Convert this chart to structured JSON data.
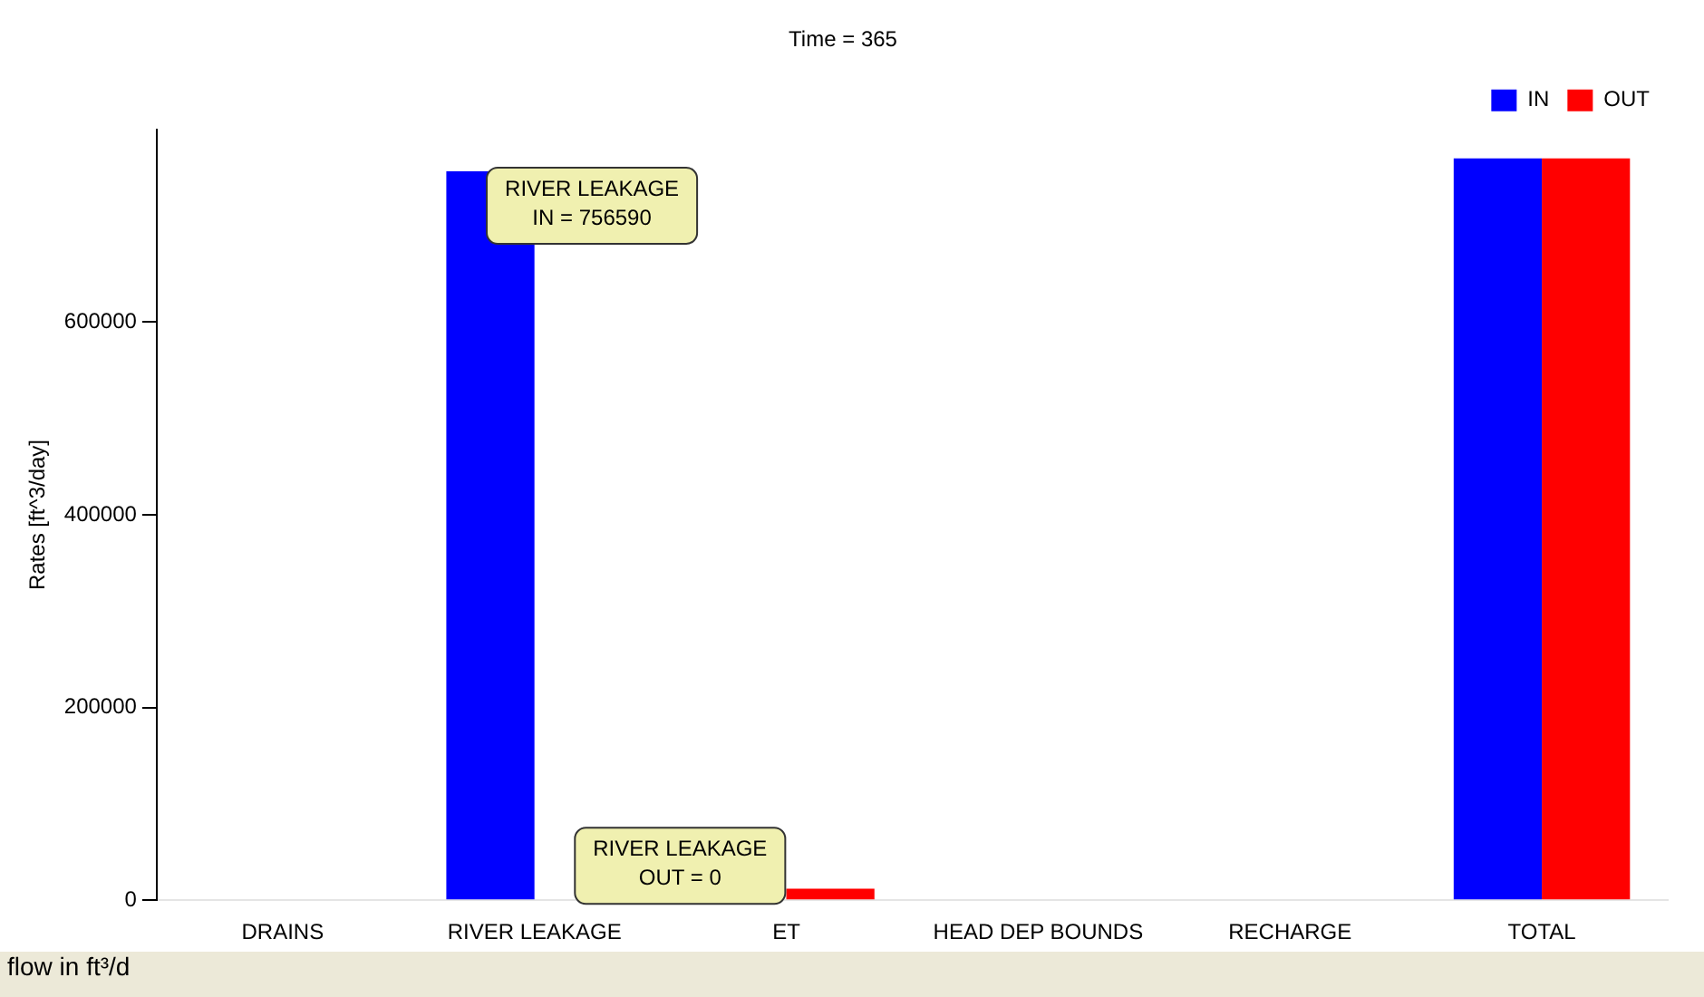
{
  "chart_data": {
    "type": "bar",
    "title": "Time = 365",
    "ylabel": "Rates [ft^3/day]",
    "categories": [
      "DRAINS",
      "RIVER LEAKAGE",
      "ET",
      "HEAD DEP BOUNDS",
      "RECHARGE",
      "TOTAL"
    ],
    "series": [
      {
        "name": "IN",
        "color": "#0000ff",
        "values": [
          0,
          756590,
          0,
          0,
          0,
          770000
        ]
      },
      {
        "name": "OUT",
        "color": "#ff0000",
        "values": [
          0,
          0,
          12000,
          0,
          0,
          770000
        ]
      }
    ],
    "ylim": [
      0,
      800000
    ],
    "yticks": [
      0,
      200000,
      400000,
      600000
    ],
    "grid": false,
    "legend": "top right",
    "annotations": [
      {
        "text": "RIVER LEAKAGE\nIN = 756590",
        "x": "RIVER LEAKAGE",
        "y": 756590
      },
      {
        "text": "RIVER LEAKAGE\nOUT = 0",
        "x": "RIVER LEAKAGE",
        "y": 0
      },
      "flow in ft³/d"
    ]
  }
}
